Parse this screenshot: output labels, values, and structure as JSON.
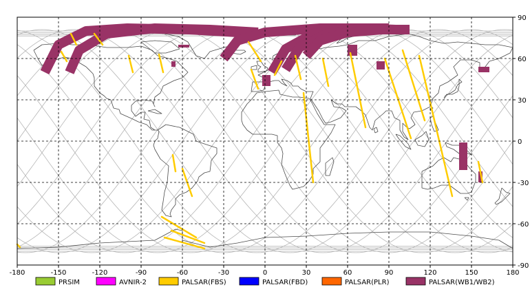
{
  "map": {
    "x_ticks": [
      "-180",
      "-150",
      "-120",
      "-90",
      "-60",
      "-30",
      "0",
      "30",
      "60",
      "90",
      "120",
      "150",
      "180"
    ],
    "y_ticks": [
      "90",
      "60",
      "30",
      "0",
      "-30",
      "-60",
      "-90"
    ],
    "lon_range": [
      -180,
      180
    ],
    "lat_range": [
      -90,
      90
    ],
    "grid": true,
    "orbit_track_color": "#b4b4b4",
    "coastline_color": "#4a4a4a",
    "land_outline": "simplified coastlines (approximate)"
  },
  "legend": {
    "placement": "bottom",
    "items": [
      {
        "label": "PRSIM",
        "color": "#99cc33"
      },
      {
        "label": "AVNIR-2",
        "color": "#ff00ff"
      },
      {
        "label": "PALSAR(FBS)",
        "color": "#ffcc00"
      },
      {
        "label": "PALSAR(FBD)",
        "color": "#0000ff"
      },
      {
        "label": "PALSAR(PLR)",
        "color": "#ff6600"
      },
      {
        "label": "PALSAR(WB1/WB2)",
        "color": "#993366"
      }
    ]
  }
}
